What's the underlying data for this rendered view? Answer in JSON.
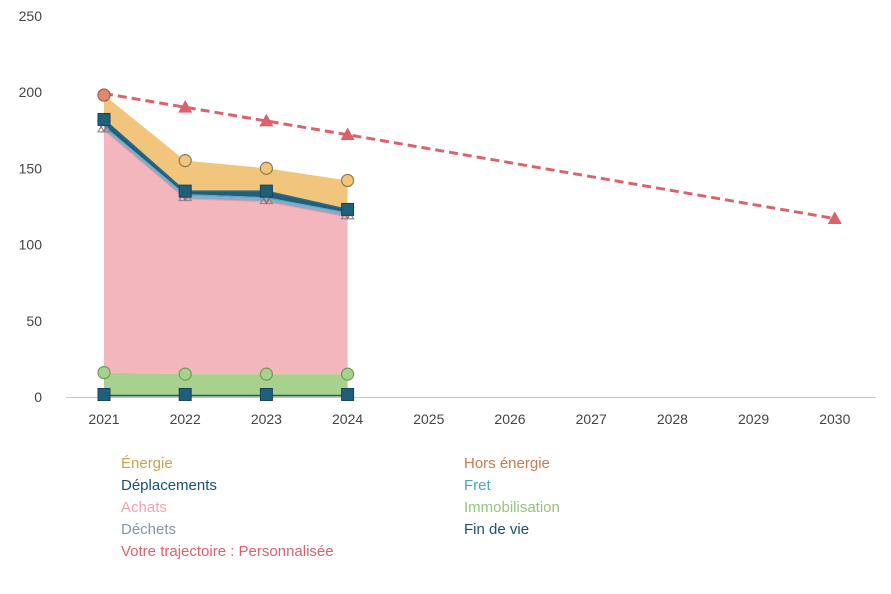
{
  "chart_data": {
    "type": "area",
    "x": [
      2021,
      2022,
      2023,
      2024,
      2025,
      2026,
      2027,
      2028,
      2029,
      2030
    ],
    "yticks": [
      0,
      50,
      100,
      150,
      200,
      250
    ],
    "ylim": [
      0,
      250
    ],
    "grid": false,
    "legend_position": "bottom",
    "stacked_series_note_free": true,
    "series": [
      {
        "key": "fin_de_vie",
        "name": "Fin de vie",
        "color": "#1f5f7a",
        "marker": "square",
        "x": [
          2021,
          2022,
          2023,
          2024
        ],
        "values": [
          1,
          1,
          1,
          1
        ]
      },
      {
        "key": "immobilisation",
        "name": "Immobilisation",
        "color": "#a9d18e",
        "marker": "circle",
        "x": [
          2021,
          2022,
          2023,
          2024
        ],
        "values": [
          16,
          15,
          15,
          15
        ]
      },
      {
        "key": "achats",
        "name": "Achats",
        "color": "#f4b6bd",
        "marker": "none",
        "x": [
          2021,
          2022,
          2023,
          2024
        ],
        "values": [
          175,
          130,
          128,
          118
        ]
      },
      {
        "key": "dechets",
        "name": "Déchets",
        "color": "#8fa7bf",
        "marker": "triangle-up",
        "x": [
          2021,
          2022,
          2023,
          2024
        ],
        "values": [
          177,
          132,
          130,
          120
        ]
      },
      {
        "key": "fret",
        "name": "Fret",
        "color": "#5aa9c9",
        "marker": "triangle-down",
        "x": [
          2021,
          2022,
          2023,
          2024
        ],
        "values": [
          178,
          133,
          131,
          121
        ]
      },
      {
        "key": "deplacements",
        "name": "Déplacements",
        "color": "#1f5f7a",
        "marker": "square",
        "x": [
          2021,
          2022,
          2023,
          2024
        ],
        "values": [
          182,
          135,
          135,
          123
        ]
      },
      {
        "key": "energie",
        "name": "Énergie",
        "color": "#f2c57c",
        "marker": "circle",
        "x": [
          2021,
          2022,
          2023,
          2024
        ],
        "values": [
          198,
          155,
          150,
          142
        ]
      },
      {
        "key": "hors_energie",
        "name": "Hors énergie",
        "color": "#d98b5f",
        "marker": "circle",
        "x": [
          2021
        ],
        "values": [
          198
        ]
      },
      {
        "key": "trajectoire",
        "name": "Votre trajectoire : Personnalisée",
        "color": "#d9626b",
        "marker": "triangle-up",
        "x": [
          2021,
          2022,
          2023,
          2024,
          2030
        ],
        "values": [
          199,
          190,
          181,
          172,
          117
        ]
      }
    ]
  },
  "legend": {
    "energie": "Énergie",
    "hors_energie": "Hors énergie",
    "deplacements": "Déplacements",
    "fret": "Fret",
    "achats": "Achats",
    "immobilisation": "Immobilisation",
    "dechets": "Déchets",
    "fin_de_vie": "Fin de vie",
    "trajectoire": "Votre trajectoire : Personnalisée"
  },
  "colors": {
    "energie": "#c9a24f",
    "hors_energie": "#c8794f",
    "deplacements": "#1b4f72",
    "fret": "#4aa3c4",
    "achats": "#f2a3ad",
    "immobilisation": "#93c47d",
    "dechets": "#7f97ad",
    "fin_de_vie": "#1b4f72",
    "trajectoire": "#d9626b"
  }
}
